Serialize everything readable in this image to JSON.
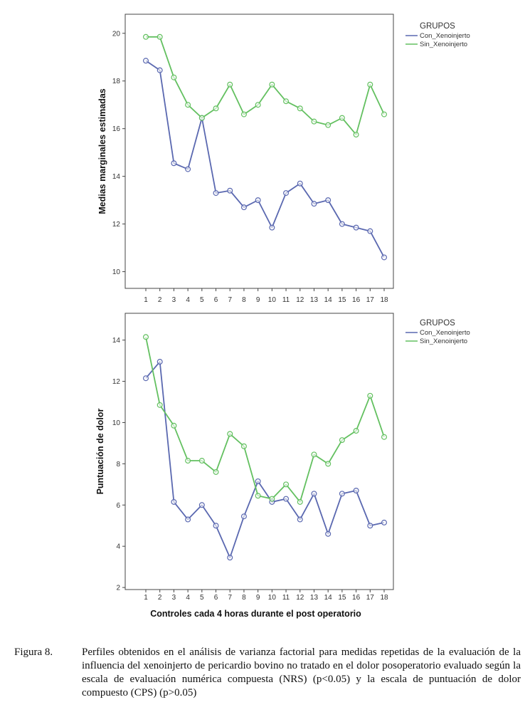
{
  "chart_data": [
    {
      "type": "line",
      "ylabel": "Medias marginales estimadas",
      "xlabel": "",
      "legend_title": "GRUPOS",
      "legend_position": "top-right",
      "x": [
        "1",
        "2",
        "3",
        "4",
        "5",
        "6",
        "7",
        "8",
        "9",
        "10",
        "11",
        "12",
        "13",
        "14",
        "15",
        "16",
        "17",
        "18"
      ],
      "yticks": [
        "10",
        "12",
        "14",
        "16",
        "18",
        "20"
      ],
      "ylim": [
        9.3,
        20.8
      ],
      "series": [
        {
          "name": "Con_Xenoinjerto",
          "color": "#5a68b0",
          "values": [
            18.85,
            18.45,
            14.55,
            14.3,
            16.45,
            13.3,
            13.4,
            12.7,
            13.0,
            11.85,
            13.3,
            13.7,
            12.85,
            13.0,
            12.0,
            11.85,
            11.7,
            10.6
          ]
        },
        {
          "name": "Sin_Xenoinjerto",
          "color": "#63c060",
          "values": [
            19.85,
            19.85,
            18.15,
            17.0,
            16.45,
            16.85,
            17.85,
            16.6,
            17.0,
            17.85,
            17.15,
            16.85,
            16.3,
            16.15,
            16.45,
            15.75,
            17.85,
            16.6
          ]
        }
      ]
    },
    {
      "type": "line",
      "ylabel": "Puntuación de dolor",
      "xlabel": "Controles cada 4 horas durante el post operatorio",
      "legend_title": "GRUPOS",
      "legend_position": "top-right",
      "x": [
        "1",
        "2",
        "3",
        "4",
        "5",
        "6",
        "7",
        "8",
        "9",
        "10",
        "11",
        "12",
        "13",
        "14",
        "15",
        "16",
        "17",
        "18"
      ],
      "yticks": [
        "2",
        "4",
        "6",
        "8",
        "10",
        "12",
        "14"
      ],
      "ylim": [
        1.9,
        15.3
      ],
      "series": [
        {
          "name": "Con_Xenoinjerto",
          "color": "#5a68b0",
          "values": [
            12.15,
            12.95,
            6.15,
            5.3,
            6.0,
            5.0,
            3.45,
            5.45,
            7.15,
            6.15,
            6.3,
            5.3,
            6.55,
            4.6,
            6.55,
            6.7,
            5.0,
            5.15
          ]
        },
        {
          "name": "Sin_Xenoinjerto",
          "color": "#63c060",
          "values": [
            14.15,
            10.85,
            9.85,
            8.15,
            8.15,
            7.6,
            9.45,
            8.85,
            6.45,
            6.3,
            7.0,
            6.15,
            8.45,
            8.0,
            9.15,
            9.6,
            11.3,
            9.3
          ]
        }
      ]
    }
  ],
  "caption": {
    "number": "Figura 8.",
    "text": "Perfiles obtenidos en el análisis de varianza factorial para medidas repetidas de la evaluación de la influencia del xenoinjerto de pericardio bovino no tratado en el dolor posoperatorio evaluado según la escala de evaluación numérica compuesta (NRS) (p<0.05) y la escala de puntuación de dolor compuesto (CPS) (p>0.05)"
  }
}
